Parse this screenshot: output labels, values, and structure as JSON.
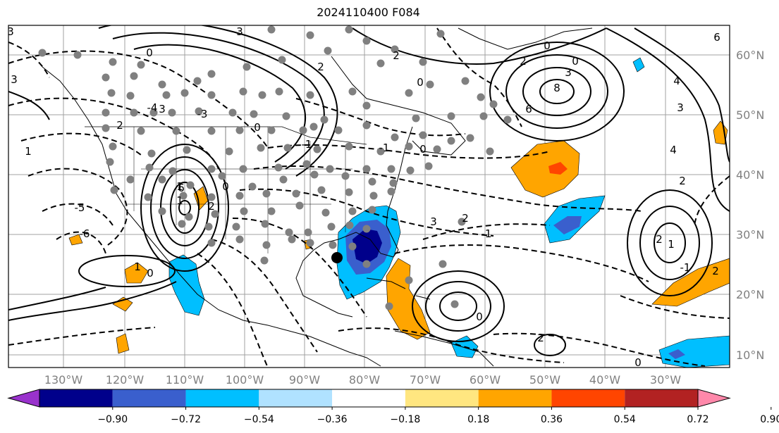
{
  "title": "2024110400 F084",
  "longitude_labels": [
    "130°W",
    "120°W",
    "110°W",
    "100°W",
    "90°W",
    "80°W",
    "70°W",
    "60°W",
    "50°W",
    "40°W",
    "30°W"
  ],
  "latitude_labels": [
    "60°N",
    "50°N",
    "40°N",
    "30°N",
    "20°N",
    "10°N"
  ],
  "colorbar": {
    "tick_labels": [
      "−0.90",
      "−0.72",
      "−0.54",
      "−0.36",
      "−0.18",
      "0.18",
      "0.36",
      "0.54",
      "0.72",
      "0.90"
    ],
    "colors": [
      "#9932cc",
      "#00008b",
      "#3a5fcd",
      "#00bfff",
      "#b0e2ff",
      "#ffffff",
      "#ffe680",
      "#ffa500",
      "#ff4500",
      "#b22222",
      "#ff88aa"
    ]
  },
  "contour_labels": [
    "3",
    "3",
    "0",
    "2",
    "2",
    "0",
    "0",
    "2",
    "3",
    "8",
    "0",
    "6",
    "6",
    "4",
    "3",
    "4",
    "2",
    "3",
    "1",
    "0",
    "2",
    "1",
    "1",
    "2",
    "0",
    "0",
    "-1",
    "-1",
    "2",
    "3",
    "2",
    "1",
    "-1",
    "2",
    "0",
    "2",
    "1",
    "0",
    "0",
    "-1",
    "-3",
    "-4",
    "-5",
    "-6",
    "6",
    "3"
  ],
  "fill_colors": {
    "orange": "#ffa500",
    "red": "#ff4500",
    "sky": "#00bfff",
    "deep_blue": "#00008b",
    "mid_blue": "#3a5fcd"
  },
  "marker_color": "#808080"
}
